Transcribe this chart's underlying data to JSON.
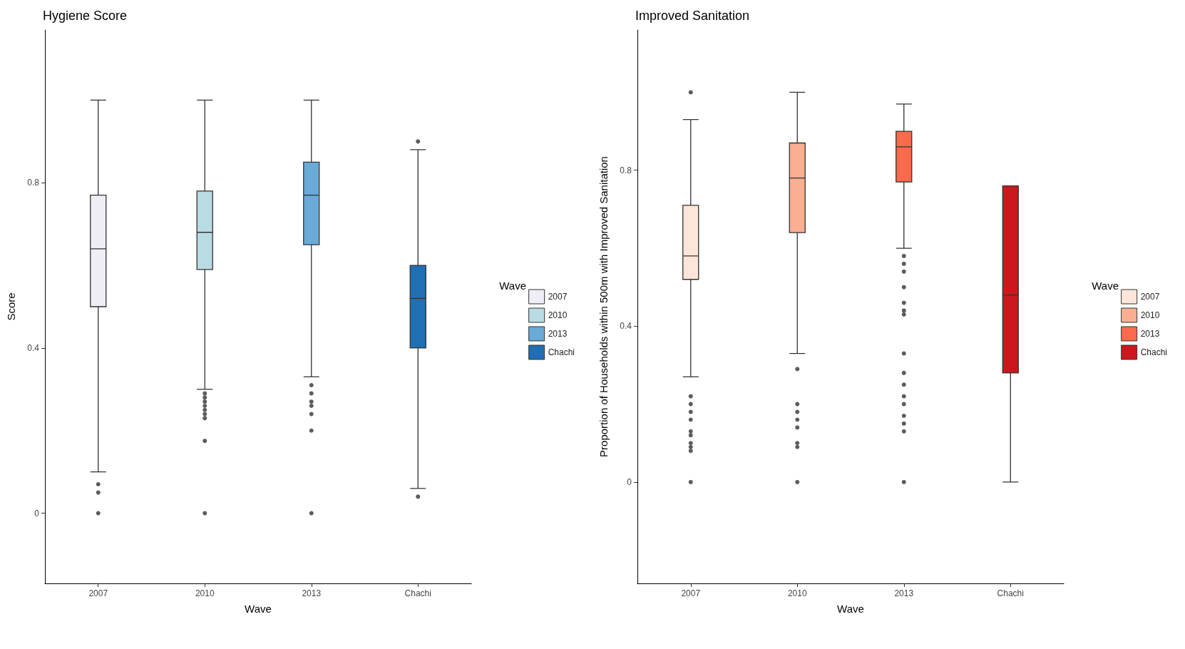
{
  "chart_data": [
    {
      "type": "box",
      "title": "Hygiene Score",
      "xlabel": "Wave",
      "ylabel": "Score",
      "legend_title": "Wave",
      "legend": "right",
      "categories": [
        "2007",
        "2010",
        "2013",
        "Chachi"
      ],
      "ylim": [
        -0.17,
        1.17
      ],
      "yticks": [
        0,
        0.4,
        0.8
      ],
      "series": [
        {
          "name": "2007",
          "color": "#efedf5",
          "boxes": [
            {
              "low": 0.1,
              "q1": 0.5,
              "median": 0.64,
              "q3": 0.77,
              "high": 1.0,
              "outliers": [
                0.07,
                0.05,
                0
              ]
            },
            null,
            null,
            null
          ]
        },
        {
          "name": "2010",
          "color": "#b9dbe3",
          "boxes": [
            null,
            {
              "low": 0.3,
              "q1": 0.59,
              "median": 0.68,
              "q3": 0.78,
              "high": 1.0,
              "outliers": [
                0.29,
                0.28,
                0.27,
                0.26,
                0.25,
                0.24,
                0.23,
                0.175,
                0
              ]
            },
            null,
            null
          ]
        },
        {
          "name": "2013",
          "color": "#69aad6",
          "boxes": [
            null,
            null,
            {
              "low": 0.33,
              "q1": 0.65,
              "median": 0.77,
              "q3": 0.85,
              "high": 1.0,
              "outliers": [
                0.31,
                0.29,
                0.27,
                0.26,
                0.24,
                0.2,
                0
              ]
            },
            null
          ]
        },
        {
          "name": "Chachi",
          "color": "#1f6fb4",
          "boxes": [
            null,
            null,
            null,
            {
              "low": 0.06,
              "q1": 0.4,
              "median": 0.52,
              "q3": 0.6,
              "high": 0.88,
              "outliers": [
                0.9,
                0.04
              ]
            }
          ]
        }
      ]
    },
    {
      "type": "box",
      "title": "Improved Sanitation",
      "xlabel": "Wave",
      "ylabel": "Proportion of Households within 500m with Improved Sanitation",
      "legend_title": "Wave",
      "legend": "right",
      "categories": [
        "2007",
        "2010",
        "2013",
        "Chachi"
      ],
      "ylim": [
        -0.26,
        1.16
      ],
      "yticks": [
        0,
        0.4,
        0.8
      ],
      "series": [
        {
          "name": "2007",
          "color": "#fee5d9",
          "boxes": [
            {
              "low": 0.27,
              "q1": 0.52,
              "median": 0.58,
              "q3": 0.71,
              "high": 0.93,
              "outliers": [
                1.0,
                0.22,
                0.2,
                0.18,
                0.16,
                0.13,
                0.12,
                0.1,
                0.09,
                0.08,
                0
              ]
            },
            null,
            null,
            null
          ]
        },
        {
          "name": "2010",
          "color": "#fcae91",
          "boxes": [
            null,
            {
              "low": 0.33,
              "q1": 0.64,
              "median": 0.78,
              "q3": 0.87,
              "high": 1.0,
              "outliers": [
                0.29,
                0.2,
                0.18,
                0.16,
                0.14,
                0.1,
                0.09,
                0
              ]
            },
            null,
            null
          ]
        },
        {
          "name": "2013",
          "color": "#fb6a4a",
          "boxes": [
            null,
            null,
            {
              "low": 0.6,
              "q1": 0.77,
              "median": 0.86,
              "q3": 0.9,
              "high": 0.97,
              "outliers": [
                0.58,
                0.56,
                0.54,
                0.5,
                0.46,
                0.44,
                0.43,
                0.33,
                0.28,
                0.25,
                0.22,
                0.2,
                0.17,
                0.15,
                0.13,
                0
              ]
            },
            null
          ]
        },
        {
          "name": "Chachi",
          "color": "#cb181d",
          "boxes": [
            null,
            null,
            null,
            {
              "low": 0.0,
              "q1": 0.28,
              "median": 0.48,
              "q3": 0.76,
              "high": 0.76
            }
          ]
        }
      ]
    }
  ]
}
